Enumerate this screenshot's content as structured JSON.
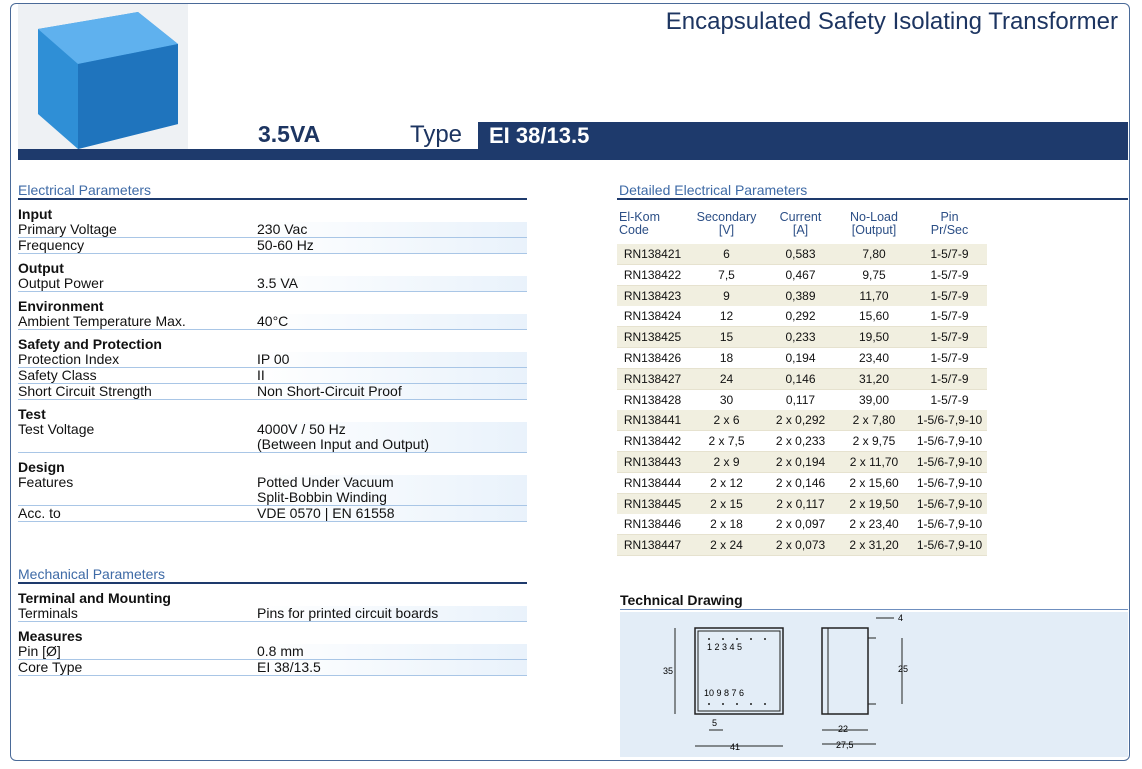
{
  "header": {
    "title": "Encapsulated Safety Isolating Transformer",
    "power": "3.5VA",
    "type_label": "Type",
    "type": "EI 38/13.5"
  },
  "electrical": {
    "heading": "Electrical Parameters",
    "groups": [
      {
        "title": "Input",
        "rows": [
          {
            "label": "Primary Voltage",
            "value": [
              "230 Vac"
            ]
          },
          {
            "label": "Frequency",
            "value": [
              "50-60 Hz"
            ]
          }
        ]
      },
      {
        "title": "Output",
        "rows": [
          {
            "label": "Output Power",
            "value": [
              "3.5 VA"
            ]
          }
        ]
      },
      {
        "title": "Environment",
        "rows": [
          {
            "label": "Ambient Temperature Max.",
            "value": [
              "40°C"
            ]
          }
        ]
      },
      {
        "title": "Safety and Protection",
        "rows": [
          {
            "label": "Protection Index",
            "value": [
              "IP 00"
            ]
          },
          {
            "label": "Safety Class",
            "value": [
              "II"
            ]
          },
          {
            "label": "Short Circuit Strength",
            "value": [
              "Non Short-Circuit Proof"
            ]
          }
        ]
      },
      {
        "title": "Test",
        "rows": [
          {
            "label": "Test Voltage",
            "value": [
              "4000V / 50 Hz",
              "(Between Input and Output)"
            ]
          }
        ]
      },
      {
        "title": "Design",
        "rows": [
          {
            "label": "Features",
            "value": [
              "Potted Under Vacuum",
              "Split-Bobbin Winding"
            ]
          },
          {
            "label": "Acc. to",
            "value": [
              "VDE 0570 | EN 61558"
            ]
          }
        ]
      }
    ]
  },
  "mechanical": {
    "heading": "Mechanical Parameters",
    "groups": [
      {
        "title": "Terminal and Mounting",
        "rows": [
          {
            "label": "Terminals",
            "value": [
              "Pins for printed circuit boards"
            ]
          }
        ]
      },
      {
        "title": "Measures",
        "rows": [
          {
            "label": "Pin [Ø]",
            "value": [
              "0.8 mm"
            ]
          },
          {
            "label": "Core Type",
            "value": [
              "EI 38/13.5"
            ]
          }
        ]
      }
    ]
  },
  "detailed": {
    "heading": "Detailed Electrical Parameters",
    "columns": [
      [
        "El-Kom",
        "Code"
      ],
      [
        "Secondary",
        "[V]"
      ],
      [
        "Current",
        "[A]"
      ],
      [
        "No-Load",
        "[Output]"
      ],
      [
        "Pin",
        "Pr/Sec"
      ]
    ],
    "rows": [
      [
        "RN138421",
        "6",
        "0,583",
        "7,80",
        "1-5/7-9"
      ],
      [
        "RN138422",
        "7,5",
        "0,467",
        "9,75",
        "1-5/7-9"
      ],
      [
        "RN138423",
        "9",
        "0,389",
        "11,70",
        "1-5/7-9"
      ],
      [
        "RN138424",
        "12",
        "0,292",
        "15,60",
        "1-5/7-9"
      ],
      [
        "RN138425",
        "15",
        "0,233",
        "19,50",
        "1-5/7-9"
      ],
      [
        "RN138426",
        "18",
        "0,194",
        "23,40",
        "1-5/7-9"
      ],
      [
        "RN138427",
        "24",
        "0,146",
        "31,20",
        "1-5/7-9"
      ],
      [
        "RN138428",
        "30",
        "0,117",
        "39,00",
        "1-5/7-9"
      ],
      [
        "RN138441",
        "2 x 6",
        "2 x 0,292",
        "2 x 7,80",
        "1-5/6-7,9-10"
      ],
      [
        "RN138442",
        "2 x 7,5",
        "2 x 0,233",
        "2 x 9,75",
        "1-5/6-7,9-10"
      ],
      [
        "RN138443",
        "2 x 9",
        "2 x 0,194",
        "2 x 11,70",
        "1-5/6-7,9-10"
      ],
      [
        "RN138444",
        "2 x 12",
        "2 x 0,146",
        "2 x 15,60",
        "1-5/6-7,9-10"
      ],
      [
        "RN138445",
        "2 x 15",
        "2 x 0,117",
        "2 x 19,50",
        "1-5/6-7,9-10"
      ],
      [
        "RN138446",
        "2 x 18",
        "2 x 0,097",
        "2 x 23,40",
        "1-5/6-7,9-10"
      ],
      [
        "RN138447",
        "2 x 24",
        "2 x 0,073",
        "2 x 31,20",
        "1-5/6-7,9-10"
      ]
    ]
  },
  "drawing": {
    "heading": "Technical Drawing",
    "pins_top": "1  2  3  4  5",
    "pins_bottom": "10  9  8  7  6",
    "dim_height": "35",
    "dim_pin_pitch": "5",
    "dim_width": "41",
    "dim_pin_length": "4",
    "dim_body_height": "25",
    "dim_depth": "22",
    "dim_depth_total": "27,5"
  }
}
